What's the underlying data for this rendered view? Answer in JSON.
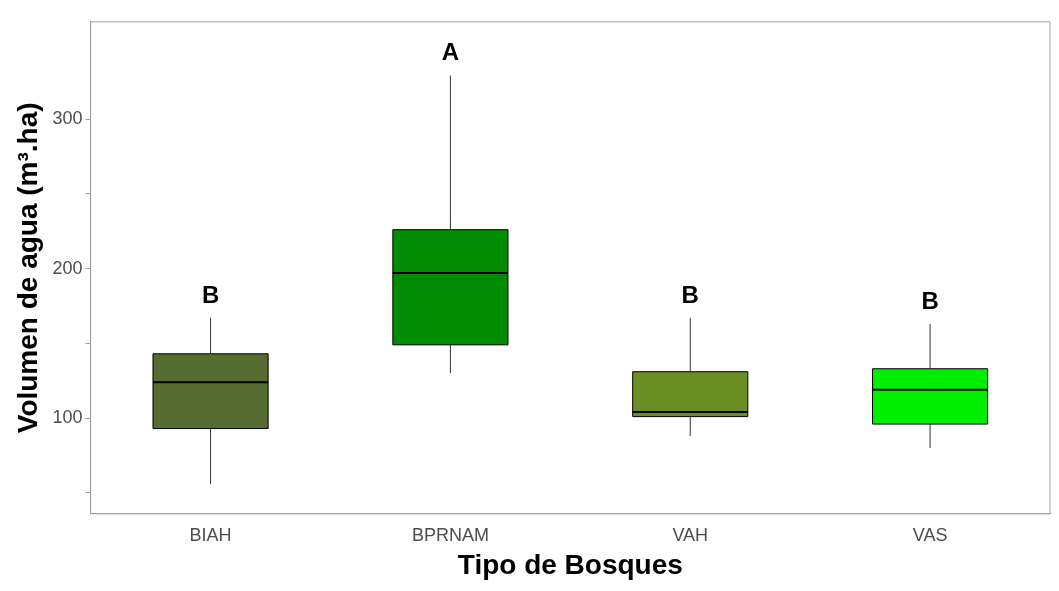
{
  "chart_data": {
    "type": "box",
    "xlabel": "Tipo de Bosques",
    "ylabel": "Volumen de agua (m³.ha)",
    "categories": [
      "BIAH",
      "BPRNAM",
      "VAH",
      "VAS"
    ],
    "colors": [
      "#556b2f",
      "#008b00",
      "#6b8e23",
      "#00ee00"
    ],
    "boxes": [
      {
        "low": 56,
        "q1": 93,
        "median": 124,
        "q3": 143,
        "high": 167
      },
      {
        "low": 130,
        "q1": 149,
        "median": 197,
        "q3": 226,
        "high": 329
      },
      {
        "low": 88,
        "q1": 101,
        "median": 104,
        "q3": 131,
        "high": 167
      },
      {
        "low": 80,
        "q1": 96,
        "median": 119,
        "q3": 133,
        "high": 163
      }
    ],
    "ylim": [
      36,
      365
    ],
    "yticks": [
      {
        "value": 50,
        "label": null
      },
      100,
      {
        "value": 150,
        "label": null
      },
      200,
      {
        "value": 250,
        "label": null
      },
      300
    ],
    "annotations": [
      "B",
      "A",
      "B",
      "B"
    ]
  }
}
